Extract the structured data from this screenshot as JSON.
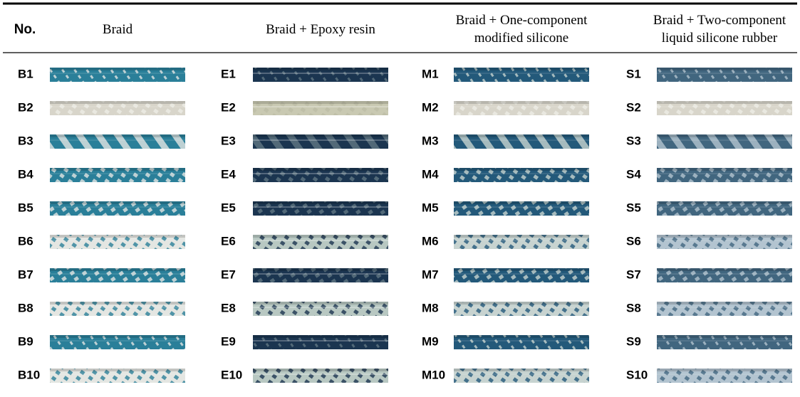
{
  "table": {
    "headers": [
      [
        "No."
      ],
      [
        "Braid"
      ],
      [
        "Braid + Epoxy resin"
      ],
      [
        "Braid + One-component",
        "modified silicone"
      ],
      [
        "Braid + Two-component",
        "liquid silicone rubber"
      ]
    ],
    "rows": [
      [
        "B1",
        "E1",
        "M1",
        "S1"
      ],
      [
        "B2",
        "E2",
        "M2",
        "S2"
      ],
      [
        "B3",
        "E3",
        "M3",
        "S3"
      ],
      [
        "B4",
        "E4",
        "M4",
        "S4"
      ],
      [
        "B5",
        "E5",
        "M5",
        "S5"
      ],
      [
        "B6",
        "E6",
        "M6",
        "S6"
      ],
      [
        "B7",
        "E7",
        "M7",
        "S7"
      ],
      [
        "B8",
        "E8",
        "M8",
        "S8"
      ],
      [
        "B9",
        "E9",
        "M9",
        "S9"
      ],
      [
        "B10",
        "E10",
        "M10",
        "S10"
      ]
    ]
  }
}
